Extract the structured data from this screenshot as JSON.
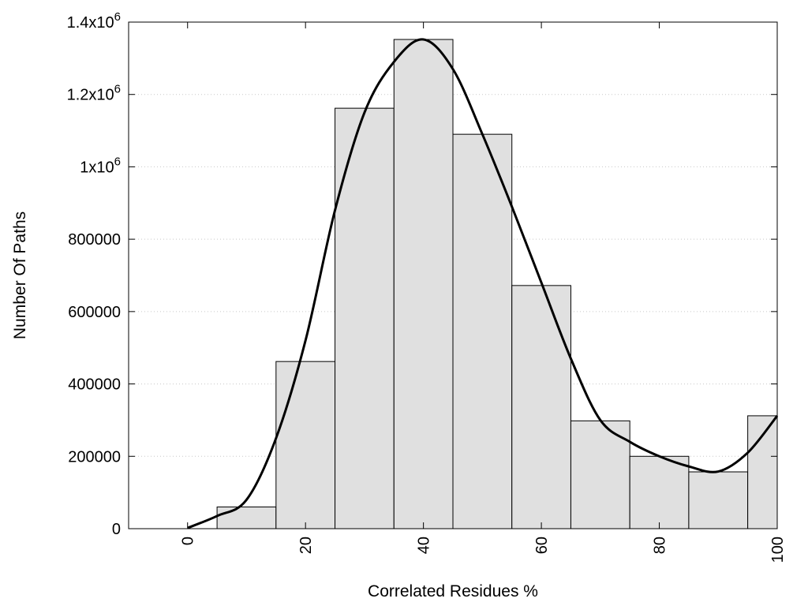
{
  "chart_data": {
    "type": "bar",
    "title": "",
    "xlabel": "Correlated Residues %",
    "ylabel": "Number Of Paths",
    "xlim": [
      -10,
      100
    ],
    "ylim": [
      0,
      1400000
    ],
    "grid": true,
    "x_ticks": [
      {
        "value": 0,
        "label": "0"
      },
      {
        "value": 20,
        "label": "20"
      },
      {
        "value": 40,
        "label": "40"
      },
      {
        "value": 60,
        "label": "60"
      },
      {
        "value": 80,
        "label": "80"
      },
      {
        "value": 100,
        "label": "100"
      }
    ],
    "y_ticks": [
      {
        "value": 0,
        "label": "0"
      },
      {
        "value": 200000,
        "label": "200000"
      },
      {
        "value": 400000,
        "label": "400000"
      },
      {
        "value": 600000,
        "label": "600000"
      },
      {
        "value": 800000,
        "label": "800000"
      },
      {
        "value": 1000000,
        "label": "1x10",
        "exp": "6"
      },
      {
        "value": 1200000,
        "label": "1.2x10",
        "exp": "6"
      },
      {
        "value": 1400000,
        "label": "1.4x10",
        "exp": "6"
      }
    ],
    "bar_width": 10,
    "bars": [
      {
        "x": 0,
        "value": 0
      },
      {
        "x": 10,
        "value": 60000
      },
      {
        "x": 20,
        "value": 462000
      },
      {
        "x": 30,
        "value": 1162000
      },
      {
        "x": 40,
        "value": 1352000
      },
      {
        "x": 50,
        "value": 1090000
      },
      {
        "x": 60,
        "value": 672000
      },
      {
        "x": 70,
        "value": 298000
      },
      {
        "x": 80,
        "value": 200000
      },
      {
        "x": 90,
        "value": 157000
      },
      {
        "x": 100,
        "value": 312000
      }
    ],
    "curve": {
      "x": [
        0,
        5,
        10,
        15,
        20,
        25,
        30,
        35,
        40,
        45,
        50,
        55,
        60,
        65,
        70,
        75,
        80,
        85,
        90,
        95,
        100
      ],
      "y": [
        2000,
        35000,
        80000,
        250000,
        520000,
        880000,
        1150000,
        1290000,
        1352000,
        1270000,
        1090000,
        890000,
        680000,
        470000,
        300000,
        240000,
        200000,
        172000,
        158000,
        210000,
        312000
      ]
    },
    "colors": {
      "bar_fill": "#e0e0e0",
      "bar_stroke": "#000000",
      "curve": "#000000",
      "grid": "#c8c8c8"
    }
  }
}
